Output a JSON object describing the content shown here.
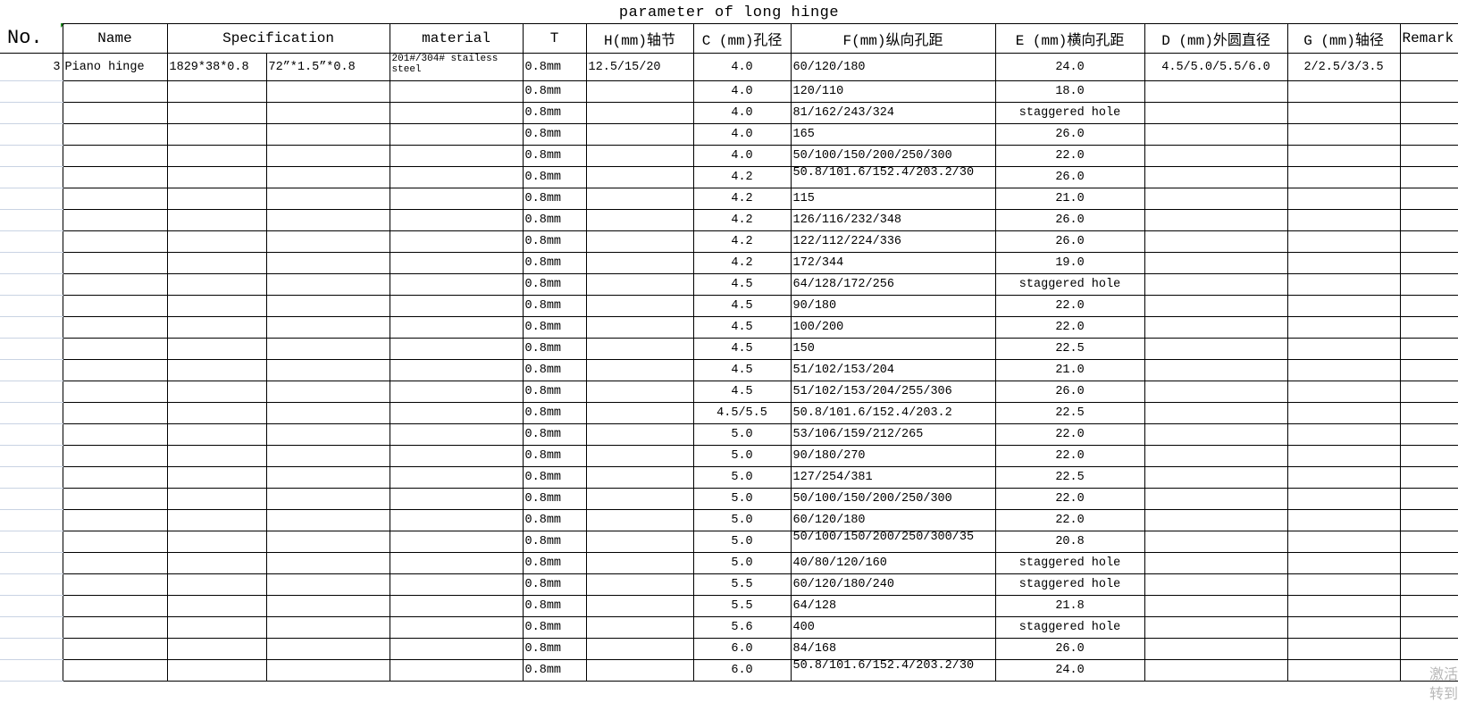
{
  "title": "parameter of long  hinge",
  "headers": [
    "No.",
    "Name",
    "Specification",
    "",
    "material",
    "T",
    "H(mm)轴节",
    "C (mm)孔径",
    "F(mm)纵向孔距",
    "E (mm)横向孔距",
    "D (mm)外圆直径",
    "G (mm)轴径",
    "Remark"
  ],
  "first_row": {
    "no": "3",
    "name": "Piano hinge",
    "spec_mm": "1829*38*0.8",
    "spec_in": "72”*1.5”*0.8",
    "material": "201#/304# stailess steel",
    "t": "0.8mm",
    "h": "12.5/15/20",
    "c": "4.0",
    "f": "60/120/180",
    "e": "24.0",
    "d": "4.5/5.0/5.5/6.0",
    "g": "2/2.5/3/3.5",
    "remark": ""
  },
  "rows": [
    {
      "t": "0.8mm",
      "c": "4.0",
      "f": "120/110",
      "e": "18.0"
    },
    {
      "t": "0.8mm",
      "c": "4.0",
      "f": "81/162/243/324",
      "e": "staggered hole"
    },
    {
      "t": "0.8mm",
      "c": "4.0",
      "f": "165",
      "e": "26.0"
    },
    {
      "t": "0.8mm",
      "c": "4.0",
      "f": "50/100/150/200/250/300",
      "e": "22.0"
    },
    {
      "t": "0.8mm",
      "c": "4.2",
      "f": "50.8/101.6/152.4/203.2/30",
      "e": "26.0",
      "wrap": true
    },
    {
      "t": "0.8mm",
      "c": "4.2",
      "f": "115",
      "e": "21.0"
    },
    {
      "t": "0.8mm",
      "c": "4.2",
      "f": "126/116/232/348",
      "e": "26.0"
    },
    {
      "t": "0.8mm",
      "c": "4.2",
      "f": "122/112/224/336",
      "e": "26.0"
    },
    {
      "t": "0.8mm",
      "c": "4.2",
      "f": "172/344",
      "e": "19.0"
    },
    {
      "t": "0.8mm",
      "c": "4.5",
      "f": "64/128/172/256",
      "e": "staggered hole"
    },
    {
      "t": "0.8mm",
      "c": "4.5",
      "f": "90/180",
      "e": "22.0"
    },
    {
      "t": "0.8mm",
      "c": "4.5",
      "f": "100/200",
      "e": "22.0"
    },
    {
      "t": "0.8mm",
      "c": "4.5",
      "f": "150",
      "e": "22.5"
    },
    {
      "t": "0.8mm",
      "c": "4.5",
      "f": "51/102/153/204",
      "e": "21.0"
    },
    {
      "t": "0.8mm",
      "c": "4.5",
      "f": "51/102/153/204/255/306",
      "e": "26.0"
    },
    {
      "t": "0.8mm",
      "c": "4.5/5.5",
      "f": "50.8/101.6/152.4/203.2",
      "e": "22.5"
    },
    {
      "t": "0.8mm",
      "c": "5.0",
      "f": "53/106/159/212/265",
      "e": "22.0"
    },
    {
      "t": "0.8mm",
      "c": "5.0",
      "f": "90/180/270",
      "e": "22.0"
    },
    {
      "t": "0.8mm",
      "c": "5.0",
      "f": "127/254/381",
      "e": "22.5"
    },
    {
      "t": "0.8mm",
      "c": "5.0",
      "f": "50/100/150/200/250/300",
      "e": "22.0"
    },
    {
      "t": "0.8mm",
      "c": "5.0",
      "f": "60/120/180",
      "e": "22.0"
    },
    {
      "t": "0.8mm",
      "c": "5.0",
      "f": "50/100/150/200/250/300/35",
      "e": "20.8",
      "wrap": true
    },
    {
      "t": "0.8mm",
      "c": "5.0",
      "f": "40/80/120/160",
      "e": "staggered hole"
    },
    {
      "t": "0.8mm",
      "c": "5.5",
      "f": "60/120/180/240",
      "e": "staggered hole"
    },
    {
      "t": "0.8mm",
      "c": "5.5",
      "f": "64/128",
      "e": "21.8"
    },
    {
      "t": "0.8mm",
      "c": "5.6",
      "f": "400",
      "e": "staggered hole"
    },
    {
      "t": "0.8mm",
      "c": "6.0",
      "f": "84/168",
      "e": "26.0"
    },
    {
      "t": "0.8mm",
      "c": "6.0",
      "f": "50.8/101.6/152.4/203.2/30",
      "e": "24.0",
      "wrap": true
    }
  ],
  "watermark": [
    "激活",
    "转到"
  ]
}
